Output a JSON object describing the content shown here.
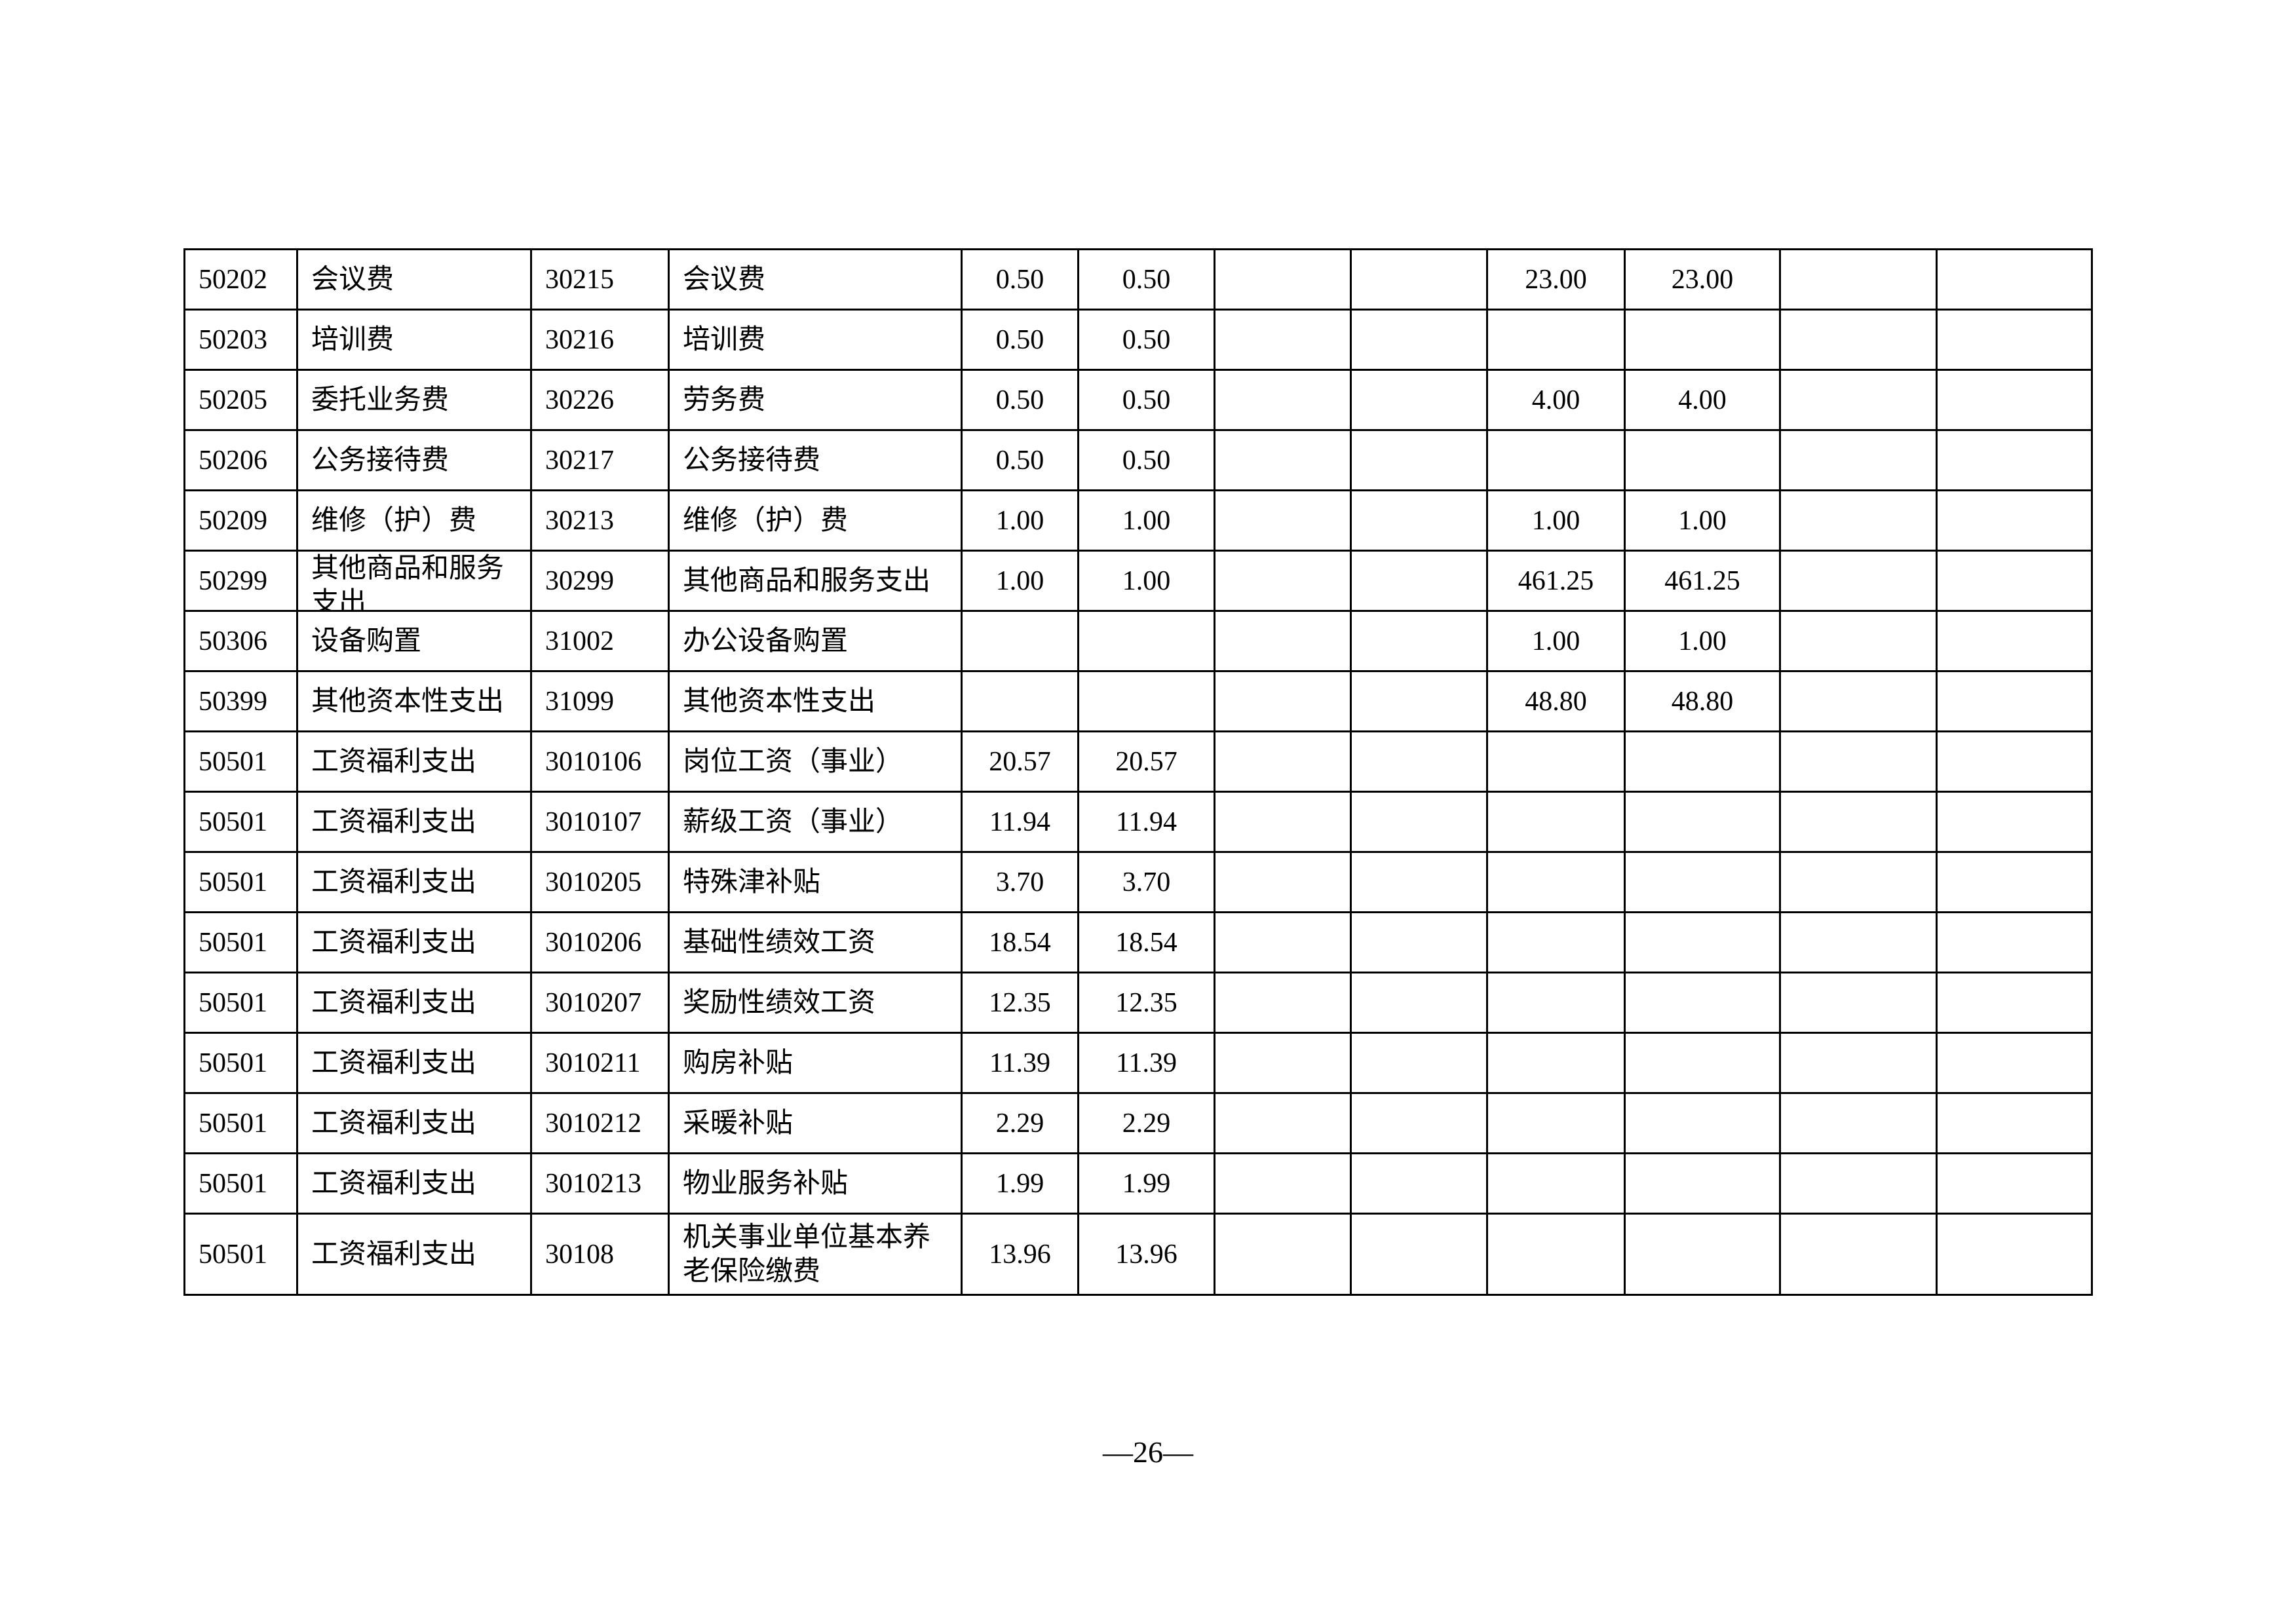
{
  "table": {
    "rows": [
      [
        "50202",
        "会议费",
        "30215",
        "会议费",
        "0.50",
        "0.50",
        "",
        "",
        "23.00",
        "23.00",
        "",
        ""
      ],
      [
        "50203",
        "培训费",
        "30216",
        "培训费",
        "0.50",
        "0.50",
        "",
        "",
        "",
        "",
        "",
        ""
      ],
      [
        "50205",
        "委托业务费",
        "30226",
        "劳务费",
        "0.50",
        "0.50",
        "",
        "",
        "4.00",
        "4.00",
        "",
        ""
      ],
      [
        "50206",
        "公务接待费",
        "30217",
        "公务接待费",
        "0.50",
        "0.50",
        "",
        "",
        "",
        "",
        "",
        ""
      ],
      [
        "50209",
        "维修（护）费",
        "30213",
        "维修（护）费",
        "1.00",
        "1.00",
        "",
        "",
        "1.00",
        "1.00",
        "",
        ""
      ],
      [
        "50299",
        "其他商品和服务支出",
        "30299",
        "其他商品和服务支出",
        "1.00",
        "1.00",
        "",
        "",
        "461.25",
        "461.25",
        "",
        ""
      ],
      [
        "50306",
        "设备购置",
        "31002",
        "办公设备购置",
        "",
        "",
        "",
        "",
        "1.00",
        "1.00",
        "",
        ""
      ],
      [
        "50399",
        "其他资本性支出",
        "31099",
        "其他资本性支出",
        "",
        "",
        "",
        "",
        "48.80",
        "48.80",
        "",
        ""
      ],
      [
        "50501",
        "工资福利支出",
        "3010106",
        "岗位工资（事业）",
        "20.57",
        "20.57",
        "",
        "",
        "",
        "",
        "",
        ""
      ],
      [
        "50501",
        "工资福利支出",
        "3010107",
        "薪级工资（事业）",
        "11.94",
        "11.94",
        "",
        "",
        "",
        "",
        "",
        ""
      ],
      [
        "50501",
        "工资福利支出",
        "3010205",
        "特殊津补贴",
        "3.70",
        "3.70",
        "",
        "",
        "",
        "",
        "",
        ""
      ],
      [
        "50501",
        "工资福利支出",
        "3010206",
        "基础性绩效工资",
        "18.54",
        "18.54",
        "",
        "",
        "",
        "",
        "",
        ""
      ],
      [
        "50501",
        "工资福利支出",
        "3010207",
        "奖励性绩效工资",
        "12.35",
        "12.35",
        "",
        "",
        "",
        "",
        "",
        ""
      ],
      [
        "50501",
        "工资福利支出",
        "3010211",
        "购房补贴",
        "11.39",
        "11.39",
        "",
        "",
        "",
        "",
        "",
        ""
      ],
      [
        "50501",
        "工资福利支出",
        "3010212",
        "采暖补贴",
        "2.29",
        "2.29",
        "",
        "",
        "",
        "",
        "",
        ""
      ],
      [
        "50501",
        "工资福利支出",
        "3010213",
        "物业服务补贴",
        "1.99",
        "1.99",
        "",
        "",
        "",
        "",
        "",
        ""
      ],
      [
        "50501",
        "工资福利支出",
        "30108",
        "机关事业单位基本养老保险缴费",
        "13.96",
        "13.96",
        "",
        "",
        "",
        "",
        "",
        ""
      ]
    ]
  },
  "footer": {
    "page_number": "—26—"
  }
}
